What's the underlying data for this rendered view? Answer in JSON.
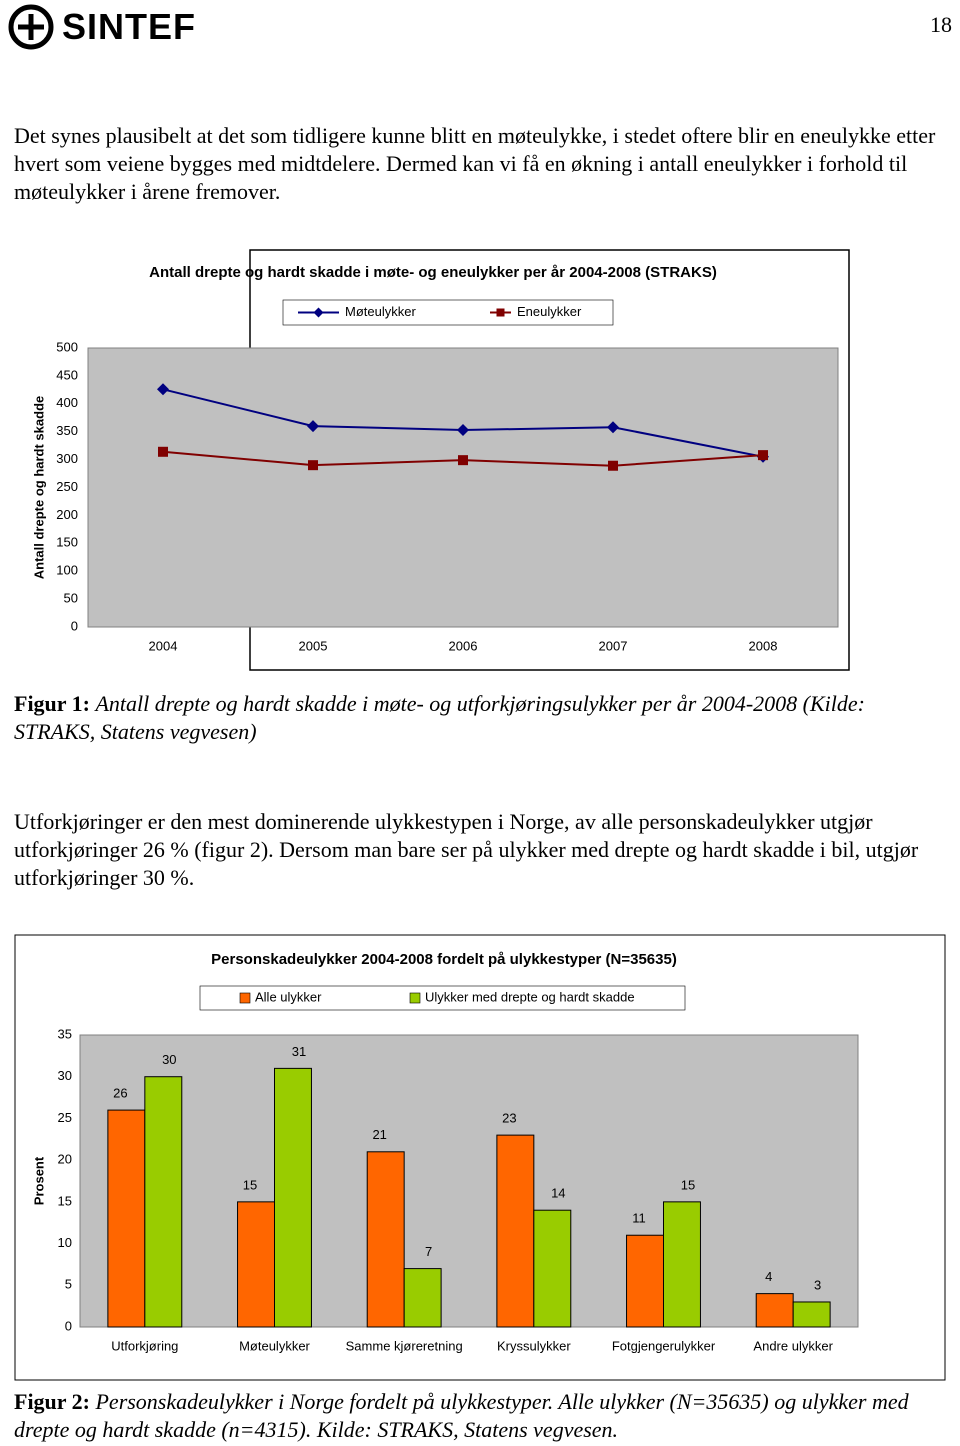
{
  "header": {
    "logo": "SINTEF",
    "page_number": "18"
  },
  "paragraphs": [
    "Det synes plausibelt at det som tidligere kunne blitt en møteulykke, i stedet oftere blir en eneulykke etter hvert som veiene bygges med midtdelere. Dermed kan vi få en økning i antall eneulykker i forhold til møteulykker i årene fremover.",
    "Utforkjøringer er den mest dominerende ulykkestypen i Norge, av alle personskadeulykker utgjør utforkjøringer 26 % (figur 2). Dersom man bare ser på ulykker med drepte og hardt skadde i bil, utgjør utforkjøringer 30 %."
  ],
  "captions": [
    {
      "label": "Figur 1:",
      "text": "Antall drepte og hardt skadde i møte- og utforkjøringsulykker per år 2004-2008 (Kilde: STRAKS, Statens vegvesen)"
    },
    {
      "label": "Figur 2:",
      "text": "Personskadeulykker i Norge fordelt på ulykkestyper.  Alle ulykker (N=35635) og ulykker med drepte og hardt skadde (n=4315). Kilde: STRAKS, Statens vegvesen."
    }
  ],
  "chart_data": [
    {
      "type": "line",
      "title": "Antall drepte og hardt skadde i møte- og eneulykker per år 2004-2008 (STRAKS)",
      "y_label": "Antall drepte og hardt skadde",
      "categories": [
        "2004",
        "2005",
        "2006",
        "2007",
        "2008"
      ],
      "series": [
        {
          "name": "Møteulykker",
          "color": "#000080",
          "marker": "diamond",
          "values": [
            426,
            360,
            353,
            358,
            305
          ]
        },
        {
          "name": "Eneulykker",
          "color": "#800000",
          "marker": "square",
          "values": [
            314,
            290,
            299,
            289,
            308
          ]
        }
      ],
      "ylim": [
        0,
        500
      ],
      "yticks": [
        0,
        50,
        100,
        150,
        200,
        250,
        300,
        350,
        400,
        450,
        500
      ],
      "grid": false,
      "plot_background": "#c0c0c0"
    },
    {
      "type": "bar",
      "title": "Personskadeulykker 2004-2008 fordelt på ulykkestyper (N=35635)",
      "y_label": "Prosent",
      "categories": [
        "Utforkjøring",
        "Møteulykker",
        "Samme kjøreretning",
        "Kryssulykker",
        "Fotgjengerulykker",
        "Andre ulykker"
      ],
      "series": [
        {
          "name": "Alle ulykker",
          "color": "#ff6600",
          "values": [
            26,
            15,
            21,
            23,
            11,
            4
          ]
        },
        {
          "name": "Ulykker med drepte og hardt skadde",
          "color": "#99cc00",
          "values": [
            30,
            31,
            7,
            14,
            15,
            3
          ]
        }
      ],
      "ylim": [
        0,
        35
      ],
      "yticks": [
        0,
        5,
        10,
        15,
        20,
        25,
        30,
        35
      ],
      "grid": false,
      "plot_background": "#c0c0c0"
    }
  ]
}
